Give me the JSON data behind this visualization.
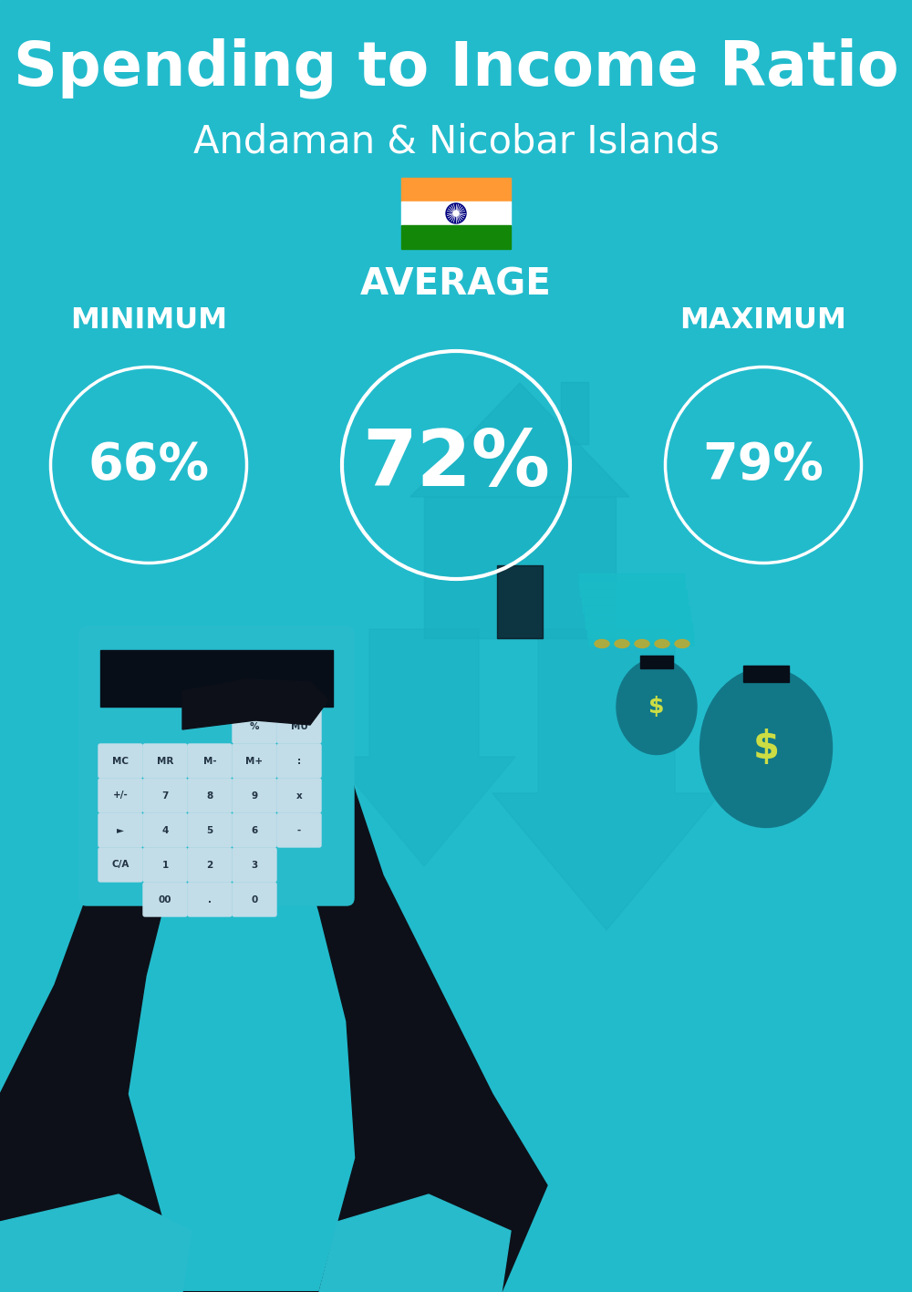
{
  "title": "Spending to Income Ratio",
  "subtitle": "Andaman & Nicobar Islands",
  "bg_color": "#22BBCC",
  "text_color": "#FFFFFF",
  "min_label": "MINIMUM",
  "avg_label": "AVERAGE",
  "max_label": "MAXIMUM",
  "min_value": "66%",
  "avg_value": "72%",
  "max_value": "79%",
  "title_fontsize": 48,
  "subtitle_fontsize": 30,
  "label_fontsize": 23,
  "value_fontsize_small": 40,
  "value_fontsize_large": 62,
  "flag_colors": [
    "#FF9933",
    "#FFFFFF",
    "#138808"
  ],
  "flag_chakra_color": "#000080",
  "arrow_color": "#1AAFC0",
  "house_color": "#1AAFC0",
  "calc_color": "#28BBCC",
  "hand_color": "#0D1018",
  "cuff_color": "#22BBCC",
  "bag_color": "#158898",
  "dollar_color": "#CCDD44",
  "dark_color": "#080E18"
}
